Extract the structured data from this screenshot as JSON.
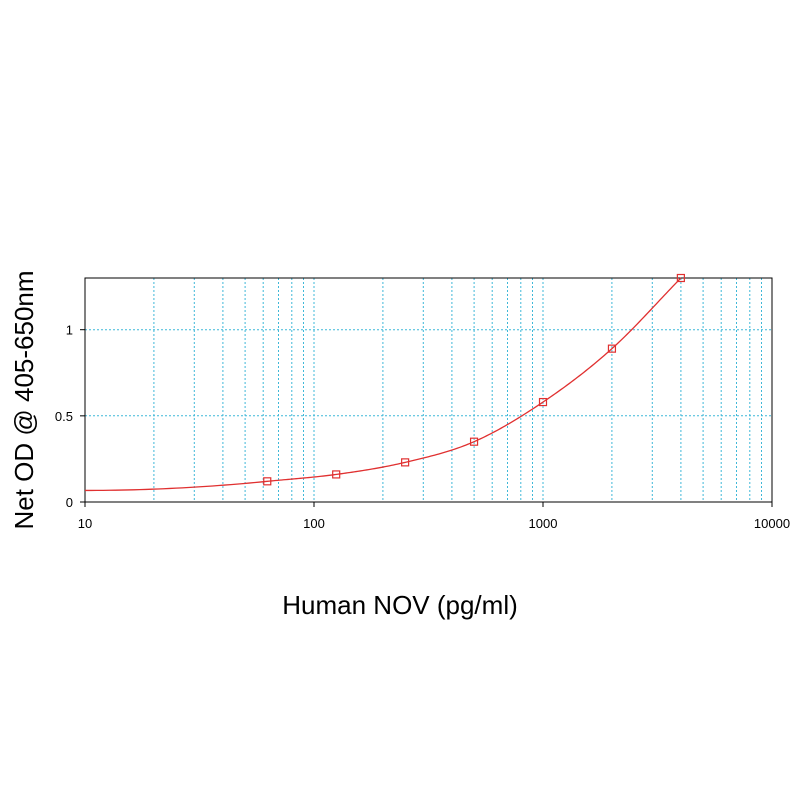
{
  "chart_data": {
    "type": "line",
    "xlabel": "Human NOV (pg/ml)",
    "ylabel": "Net OD @ 405-650nm",
    "x_scale": "log",
    "xlim": [
      10,
      10000
    ],
    "ylim": [
      0,
      1.3
    ],
    "x_ticks": [
      10,
      100,
      1000,
      10000
    ],
    "x_tick_labels": [
      "10",
      "100",
      "1000",
      "10000"
    ],
    "y_ticks": [
      0,
      0.5,
      1
    ],
    "y_tick_labels": [
      "0",
      "0.5",
      "1"
    ],
    "grid": true,
    "series": [
      {
        "points": [
          {
            "x": 62.5,
            "y": 0.12
          },
          {
            "x": 125,
            "y": 0.16
          },
          {
            "x": 250,
            "y": 0.23
          },
          {
            "x": 500,
            "y": 0.35
          },
          {
            "x": 1000,
            "y": 0.58
          },
          {
            "x": 2000,
            "y": 0.89
          },
          {
            "x": 4000,
            "y": 1.3
          }
        ]
      }
    ],
    "colors": {
      "curve": "#e03030",
      "marker": "#e03030",
      "grid": "#3fb8d8",
      "axis": "#000000"
    }
  }
}
